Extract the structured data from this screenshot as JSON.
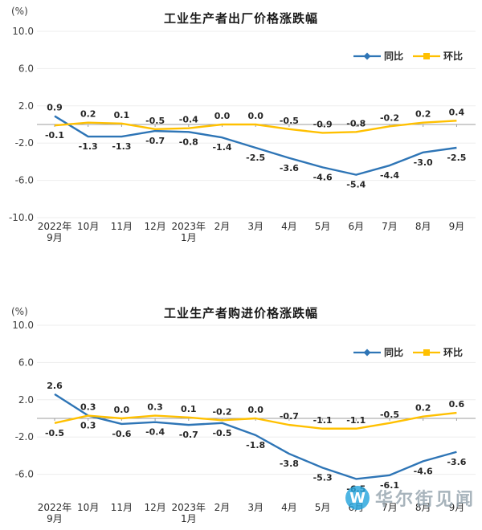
{
  "chart_data": [
    {
      "type": "line",
      "title": "工业生产者出厂价格涨跌幅",
      "y_axis": {
        "unit": "(%)",
        "ylim": [
          -10,
          10
        ],
        "ticks": [
          {
            "label": "10.0",
            "value": 10
          },
          {
            "label": "6.0",
            "value": 6
          },
          {
            "label": "2.0",
            "value": 2
          },
          {
            "label": "-2.0",
            "value": -2
          },
          {
            "label": "-6.0",
            "value": -6
          },
          {
            "label": "-10.0",
            "value": -10
          }
        ]
      },
      "grid": "zero-line",
      "legend_position": "top-right",
      "categories": [
        [
          "2022年",
          "9月"
        ],
        [
          "10月"
        ],
        [
          "11月"
        ],
        [
          "12月"
        ],
        [
          "2023年",
          "1月"
        ],
        [
          "2月"
        ],
        [
          "3月"
        ],
        [
          "4月"
        ],
        [
          "5月"
        ],
        [
          "6月"
        ],
        [
          "7月"
        ],
        [
          "8月"
        ],
        [
          "9月"
        ]
      ],
      "series": [
        {
          "name": "同比",
          "key": "yoy",
          "color": "#2e75b6",
          "marker": "diamond",
          "values": [
            0.9,
            -1.3,
            -1.3,
            -0.7,
            -0.8,
            -1.4,
            -2.5,
            -3.6,
            -4.6,
            -5.4,
            -4.4,
            -3.0,
            -2.5
          ]
        },
        {
          "name": "环比",
          "key": "mom",
          "color": "#ffc000",
          "marker": "square",
          "values": [
            -0.1,
            0.2,
            0.1,
            -0.5,
            -0.4,
            0.0,
            0.0,
            -0.5,
            -0.9,
            -0.8,
            -0.2,
            0.2,
            0.4
          ]
        }
      ]
    },
    {
      "type": "line",
      "title": "工业生产者购进价格涨跌幅",
      "y_axis": {
        "unit": "(%)",
        "ylim": [
          -8,
          10
        ],
        "ticks": [
          {
            "label": "10.0",
            "value": 10
          },
          {
            "label": "6.0",
            "value": 6
          },
          {
            "label": "2.0",
            "value": 2
          },
          {
            "label": "-2.0",
            "value": -2
          },
          {
            "label": "-6.0",
            "value": -6
          }
        ]
      },
      "grid": "zero-line",
      "legend_position": "top-right",
      "categories": [
        [
          "2022年",
          "9月"
        ],
        [
          "10月"
        ],
        [
          "11月"
        ],
        [
          "12月"
        ],
        [
          "2023年",
          "1月"
        ],
        [
          "2月"
        ],
        [
          "3月"
        ],
        [
          "4月"
        ],
        [
          "5月"
        ],
        [
          "6月"
        ],
        [
          "7月"
        ],
        [
          "8月"
        ],
        [
          "9月"
        ]
      ],
      "series": [
        {
          "name": "同比",
          "key": "yoy",
          "color": "#2e75b6",
          "marker": "diamond",
          "values": [
            2.6,
            0.3,
            -0.6,
            -0.4,
            -0.7,
            -0.5,
            -1.8,
            -3.8,
            -5.3,
            -6.5,
            -6.1,
            -4.6,
            -3.6
          ]
        },
        {
          "name": "环比",
          "key": "mom",
          "color": "#ffc000",
          "marker": "square",
          "values": [
            -0.5,
            0.3,
            0.0,
            0.3,
            0.1,
            -0.2,
            0.0,
            -0.7,
            -1.1,
            -1.1,
            -0.5,
            0.2,
            0.6
          ]
        }
      ]
    }
  ],
  "watermark": {
    "logo_letter": "W",
    "text": "华尔街见闻",
    "logo_color": "#27a5de"
  }
}
